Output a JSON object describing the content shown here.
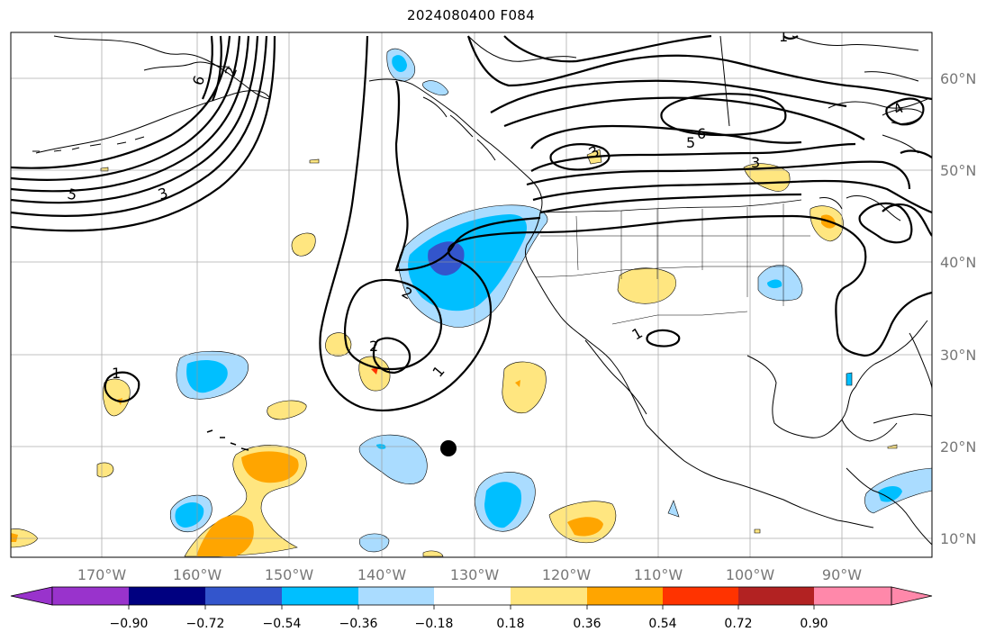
{
  "title": "2024080400 F084",
  "lon_labels": [
    "170°W",
    "160°W",
    "150°W",
    "140°W",
    "130°W",
    "120°W",
    "110°W",
    "100°W",
    "90°W"
  ],
  "lat_labels": [
    "60°N",
    "50°N",
    "40°N",
    "30°N",
    "20°N",
    "10°N"
  ],
  "contour_labels": [
    "1",
    "2",
    "3",
    "4",
    "5",
    "6",
    "2",
    "3",
    "5",
    "6",
    "1",
    "1",
    "1",
    "2",
    "3"
  ],
  "colorbar": {
    "colors": [
      "#9933cc",
      "#000080",
      "#3355cc",
      "#00bfff",
      "#aadcff",
      "#ffffff",
      "#ffe680",
      "#ffa500",
      "#ff3300",
      "#b22222",
      "#ff88aa"
    ],
    "tick_labels": [
      "−0.90",
      "−0.72",
      "−0.54",
      "−0.36",
      "−0.18",
      "0.18",
      "0.36",
      "0.54",
      "0.72",
      "0.90"
    ]
  },
  "marker": "storm-position"
}
